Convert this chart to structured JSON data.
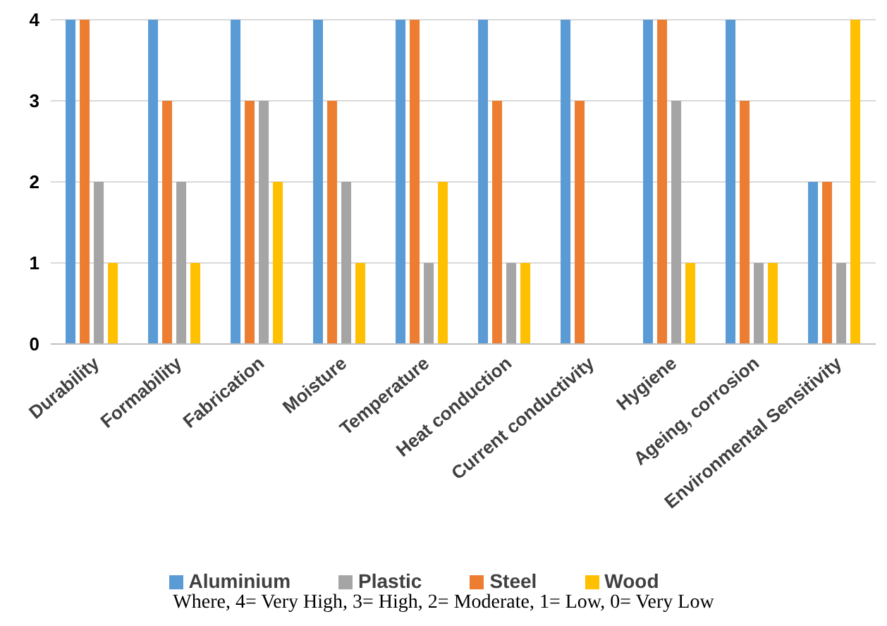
{
  "chart_data": {
    "type": "bar",
    "categories": [
      "Durability",
      "Formability",
      "Fabrication",
      "Moisture",
      "Temperature",
      "Heat conduction",
      "Current conductivity",
      "Hygiene",
      "Ageing, corrosion",
      "Environmental Sensitivity"
    ],
    "series": [
      {
        "name": "Aluminium",
        "color": "#5b9bd5",
        "values": [
          4,
          4,
          4,
          4,
          4,
          4,
          4,
          4,
          4,
          2
        ]
      },
      {
        "name": "Steel",
        "color": "#ed7d31",
        "values": [
          4,
          3,
          3,
          3,
          4,
          3,
          3,
          4,
          3,
          2
        ]
      },
      {
        "name": "Plastic",
        "color": "#a5a5a5",
        "values": [
          2,
          2,
          3,
          2,
          1,
          1,
          0,
          3,
          1,
          1
        ]
      },
      {
        "name": "Wood",
        "color": "#ffc000",
        "values": [
          1,
          1,
          2,
          1,
          2,
          1,
          0,
          1,
          1,
          4
        ]
      }
    ],
    "ylim": [
      0,
      4
    ],
    "yticks": [
      0,
      1,
      2,
      3,
      4
    ],
    "grid": "y",
    "legend": "bottom",
    "annotations": [
      "Where, 4= Very High, 3= High, 2= Moderate, 1= Low, 0= Very Low"
    ]
  }
}
